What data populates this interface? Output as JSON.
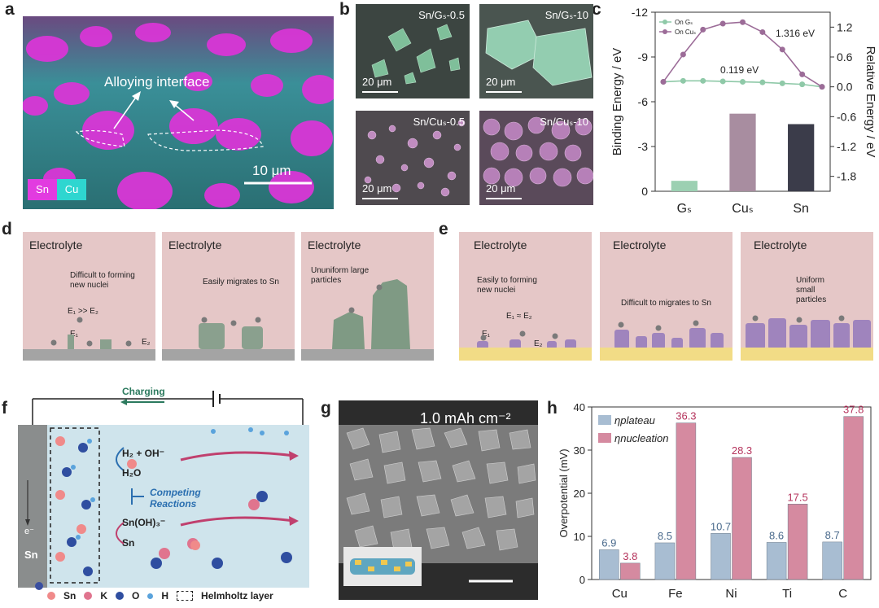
{
  "panels": {
    "a": {
      "label": "a",
      "annotation": "Alloying interface",
      "scale": "10 μm",
      "legend_sn": "Sn",
      "legend_cu": "Cu",
      "colors": {
        "sn": "#e23be0",
        "cu": "#2ed6d0"
      }
    },
    "b": {
      "label": "b",
      "tiles": [
        "Sn/Gₛ-0.5",
        "Sn/Gₛ-10",
        "Sn/Cuₛ-0.5",
        "Sn/Cuₛ-10"
      ],
      "scale": "20 μm"
    },
    "c": {
      "label": "c"
    },
    "d": {
      "label": "d",
      "boxes": [
        {
          "title": "Electrolyte",
          "note": "Difficult to forming new nuclei",
          "eq": "E₁ >> E₂",
          "e1": "E₁",
          "e2": "E₂"
        },
        {
          "title": "Electrolyte",
          "note": "Easily migrates to Sn"
        },
        {
          "title": "Electrolyte",
          "note": "Ununiform large particles"
        }
      ]
    },
    "e": {
      "label": "e",
      "boxes": [
        {
          "title": "Electrolyte",
          "note": "Easily to forming new nuclei",
          "eq": "E₁ ≈ E₂",
          "e1": "E₁",
          "e2": "E₂"
        },
        {
          "title": "Electrolyte",
          "note": "Difficult to migrates to Sn"
        },
        {
          "title": "Electrolyte",
          "note": "Uniform small particles"
        }
      ]
    },
    "f": {
      "label": "f",
      "charging": "Charging",
      "electron": "e⁻",
      "electrode": "Sn",
      "reaction1": "H₂ + OH⁻",
      "reaction1b": "H₂O",
      "competing": "Competing Reactions",
      "reaction2": "Sn(OH)₃⁻",
      "reaction2b": "Sn",
      "legend": {
        "sn": "Sn",
        "k": "K",
        "o": "O",
        "h": "H",
        "helmholtz": "Helmholtz layer"
      }
    },
    "g": {
      "label": "g",
      "capacity": "1.0 mAh cm⁻²"
    },
    "h": {
      "label": "h"
    }
  },
  "chart_data": [
    {
      "id": "c",
      "type": "bar",
      "categories": [
        "Gₛ",
        "Cuₛ",
        "Sn"
      ],
      "values": [
        -0.7,
        -5.2,
        -4.5
      ],
      "ylabel": "Binding Energy / eV",
      "ylim": [
        0,
        -12
      ],
      "yticks": [
        "-12",
        "-9",
        "-6",
        "-3",
        "0"
      ],
      "y2label": "Relative Energy / eV",
      "y2lim": [
        -2.1,
        1.5
      ],
      "y2ticks": [
        "1.2",
        "0.6",
        "0.0",
        "-0.6",
        "-1.2",
        "-1.8"
      ],
      "bar_colors": [
        "#9cd0b2",
        "#a88da0",
        "#3b3c4a"
      ],
      "lines": [
        {
          "name": "On Gₛ",
          "color": "#8fc9a8",
          "values": [
            0.1,
            0.12,
            0.12,
            0.11,
            0.1,
            0.09,
            0.07,
            0.05,
            0.0
          ]
        },
        {
          "name": "On Cuₛ",
          "color": "#9c6c98",
          "values": [
            0.1,
            0.65,
            1.15,
            1.27,
            1.3,
            1.1,
            0.75,
            0.25,
            0.0
          ]
        }
      ],
      "annotations": [
        "1.316 eV",
        "0.119 eV"
      ]
    },
    {
      "id": "h",
      "type": "bar",
      "categories": [
        "Cu",
        "Fe",
        "Ni",
        "Ti",
        "C"
      ],
      "ylabel": "Overpotential (mV)",
      "ylim": [
        0,
        40
      ],
      "yticks": [
        "0",
        "10",
        "20",
        "30",
        "40"
      ],
      "series": [
        {
          "name": "ηplateau",
          "sub": "plateau",
          "color": "#a8bdd2",
          "values": [
            6.9,
            8.5,
            10.7,
            8.6,
            8.7
          ],
          "labels": [
            "6.9",
            "8.5",
            "10.7",
            "8.6",
            "8.7"
          ]
        },
        {
          "name": "ηnucleation",
          "sub": "nucleation",
          "color": "#d58aa0",
          "values": [
            3.8,
            36.3,
            28.3,
            17.5,
            37.8
          ],
          "labels": [
            "3.8",
            "36.3",
            "28.3",
            "17.5",
            "37.8"
          ]
        }
      ]
    }
  ]
}
